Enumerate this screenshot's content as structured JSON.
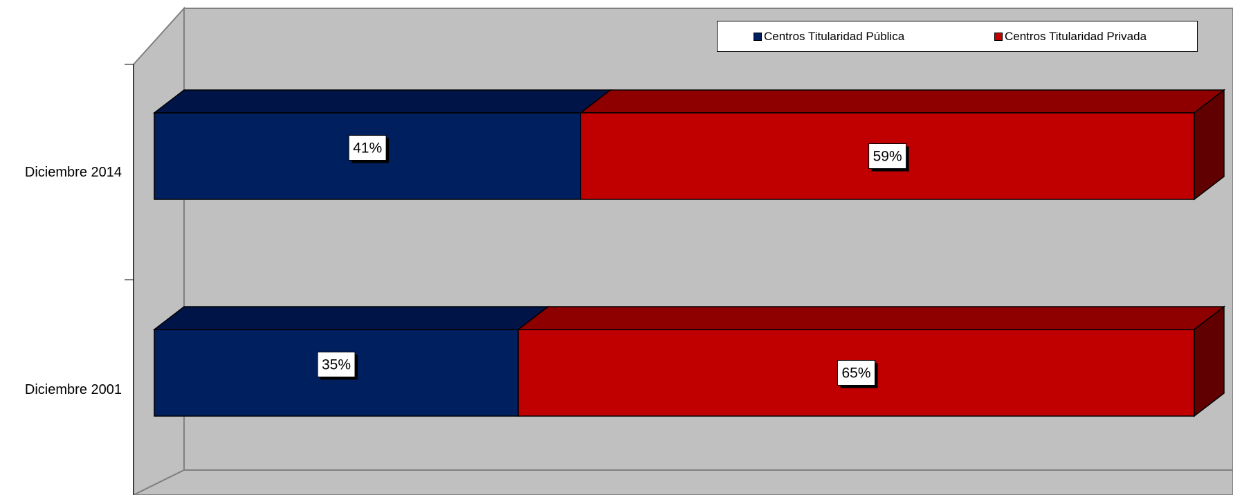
{
  "chart_data": {
    "type": "bar",
    "orientation": "horizontal",
    "stacked": "percent",
    "style": "3d",
    "categories": [
      "Diciembre 2014",
      "Diciembre 2001"
    ],
    "series": [
      {
        "name": "Centros Titularidad Pública",
        "values": [
          41,
          35
        ],
        "labels": [
          "41%",
          "35%"
        ],
        "color": "#001F5F",
        "top_color": "#001448",
        "side_color": "#00103A"
      },
      {
        "name": "Centros Titularidad Privada",
        "values": [
          59,
          65
        ],
        "labels": [
          "59%",
          "65%"
        ],
        "color": "#C00000",
        "top_color": "#8E0000",
        "side_color": "#600000"
      }
    ],
    "xlim": [
      0,
      100
    ],
    "legend_position": "top-right",
    "grid": false,
    "colors": {
      "wall": "#C0C0C0",
      "floor": "#C0C0C0",
      "edge": "#808080"
    }
  }
}
